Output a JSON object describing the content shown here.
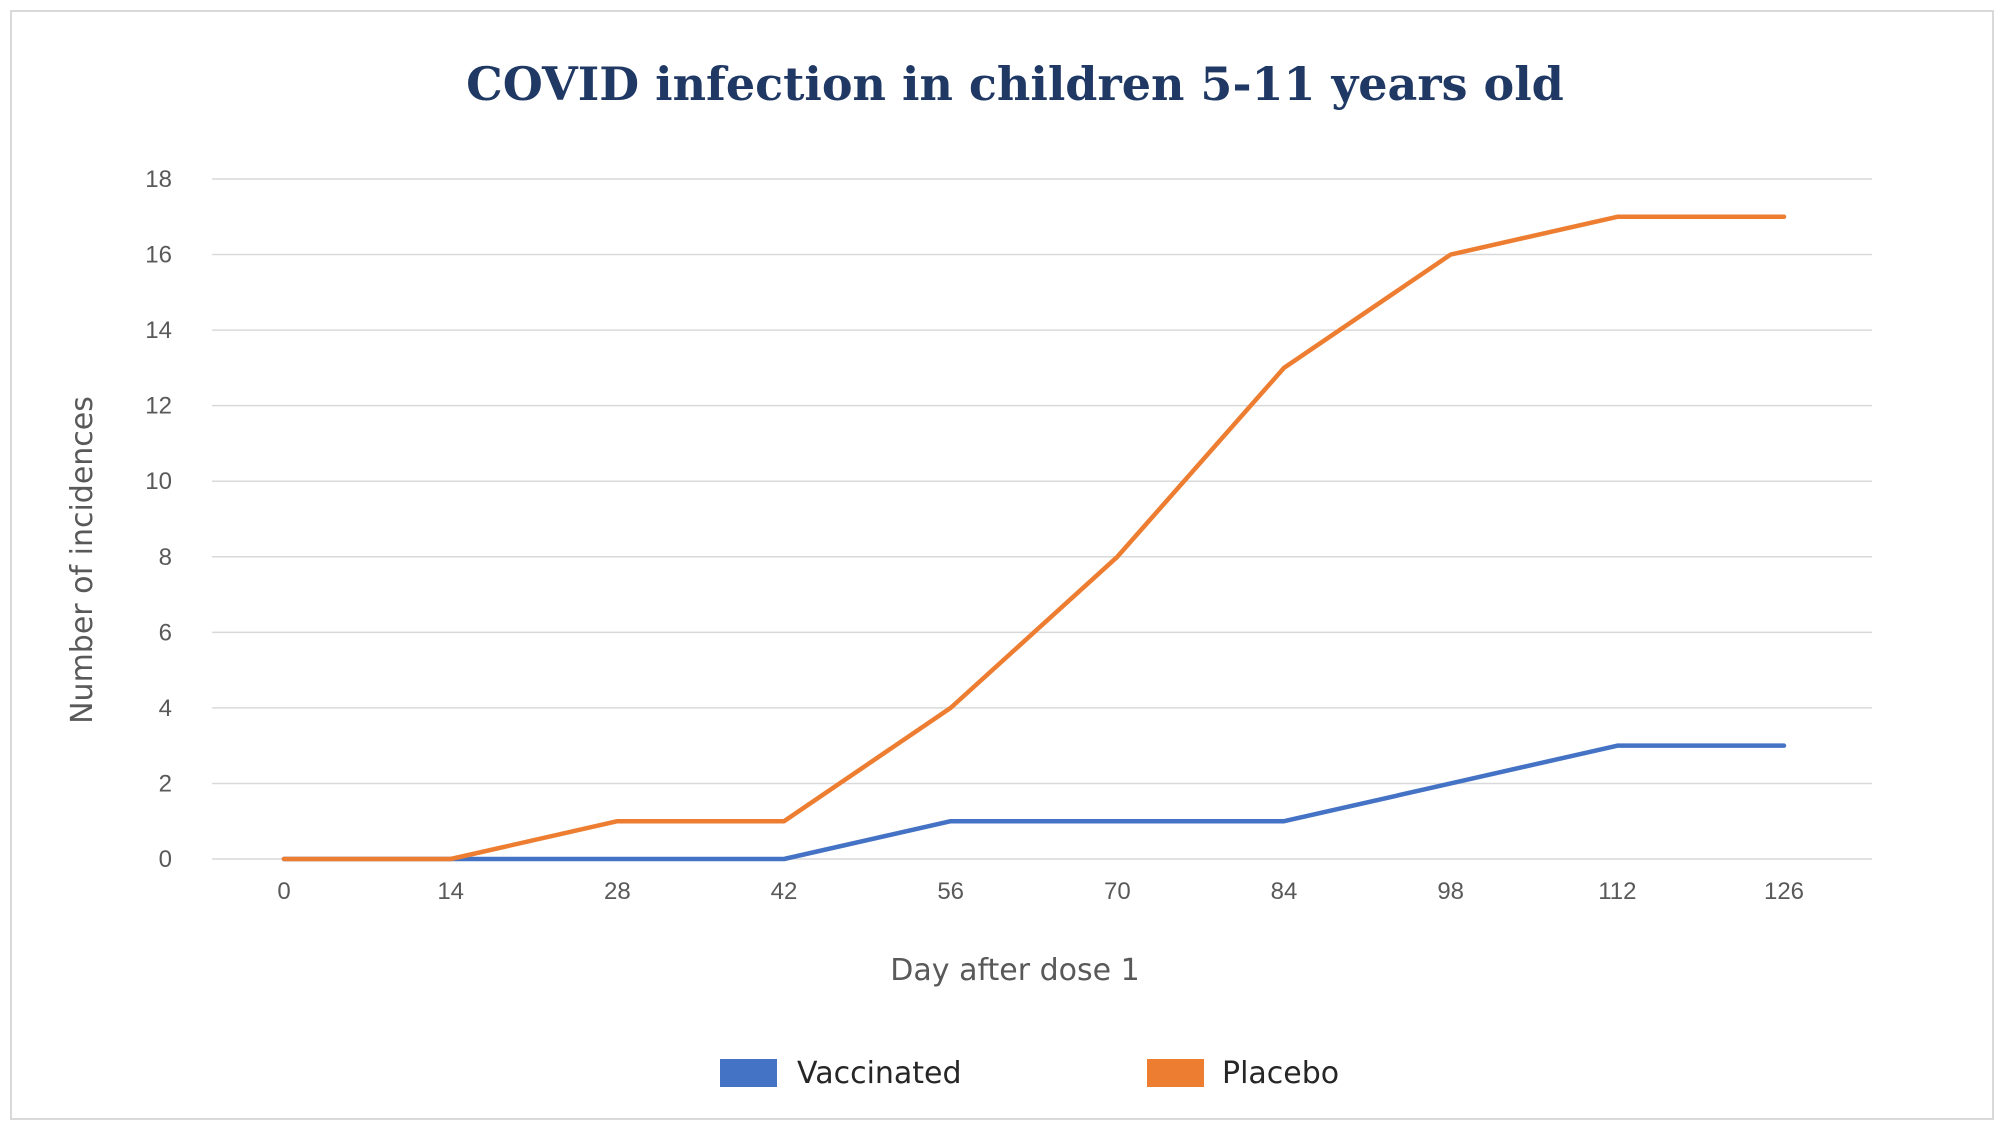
{
  "chart_data": {
    "type": "line",
    "title": "COVID infection in children 5-11 years old",
    "xlabel": "Day after dose 1",
    "ylabel": "Number of incidences",
    "x": [
      0,
      14,
      28,
      42,
      56,
      70,
      84,
      98,
      112,
      126
    ],
    "ylim": [
      0,
      18
    ],
    "yticks": [
      0,
      2,
      4,
      6,
      8,
      10,
      12,
      14,
      16,
      18
    ],
    "grid": true,
    "legend_position": "bottom",
    "series": [
      {
        "name": "Vaccinated",
        "color": "#4472c4",
        "values": [
          0,
          0,
          0,
          0,
          1,
          1,
          1,
          2,
          3,
          3
        ]
      },
      {
        "name": "Placebo",
        "color": "#ed7d31",
        "values": [
          0,
          0,
          1,
          1,
          4,
          8,
          13,
          16,
          17,
          17
        ]
      }
    ],
    "title_color": "#1f3864",
    "grid_color": "#d9d9d9",
    "text_color": "#595959"
  }
}
